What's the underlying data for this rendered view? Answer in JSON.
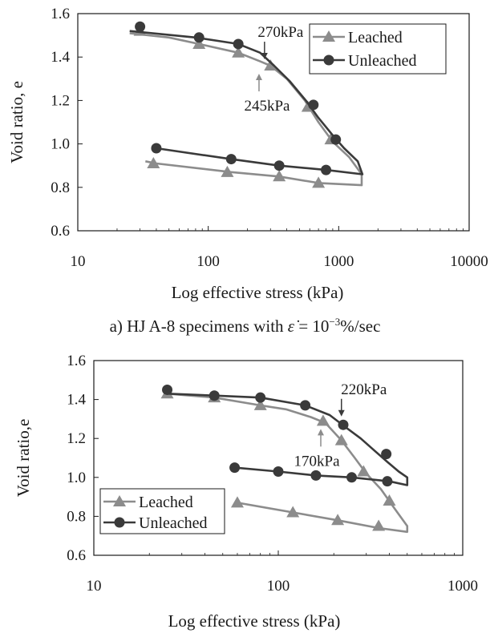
{
  "chart_data": [
    {
      "type": "line",
      "caption": "a) HJ A-8 specimens with ε̇ = 10⁻³%/sec",
      "caption_parts": {
        "prefix": "a) HJ A-8 specimens with ",
        "symbol": "ε̇",
        "eq": " = 10",
        "exp": "−3",
        "suffix": "%/sec"
      },
      "xlabel": "Log effective stress (kPa)",
      "ylabel": "Void ratio, e",
      "xscale": "log",
      "xlim": [
        10,
        10000
      ],
      "ylim": [
        0.6,
        1.6
      ],
      "xticks": [
        10,
        100,
        1000,
        10000
      ],
      "xtick_labels": [
        "10",
        "100",
        "1000",
        "10000"
      ],
      "yticks": [
        0.6,
        0.8,
        1.0,
        1.2,
        1.4,
        1.6
      ],
      "ytick_labels": [
        "0.6",
        "0.8",
        "1.0",
        "1.2",
        "1.4",
        "1.6"
      ],
      "legend_position": "top-right",
      "grid": false,
      "series": [
        {
          "name": "Leached",
          "marker": "triangle",
          "color": "#8c8c8c",
          "curve": [
            [
              25,
              1.51
            ],
            [
              50,
              1.49
            ],
            [
              85,
              1.46
            ],
            [
              170,
              1.42
            ],
            [
              250,
              1.38
            ],
            [
              300,
              1.36
            ],
            [
              400,
              1.3
            ],
            [
              550,
              1.2
            ],
            [
              700,
              1.1
            ],
            [
              900,
              1.01
            ],
            [
              1200,
              0.94
            ],
            [
              1500,
              0.86
            ],
            [
              1500,
              0.81
            ],
            [
              700,
              0.82
            ],
            [
              350,
              0.85
            ],
            [
              150,
              0.87
            ],
            [
              40,
              0.91
            ],
            [
              33,
              0.92
            ]
          ],
          "points": [
            [
              30,
              1.52
            ],
            [
              85,
              1.46
            ],
            [
              170,
              1.42
            ],
            [
              300,
              1.36
            ],
            [
              580,
              1.17
            ],
            [
              870,
              1.02
            ],
            [
              38,
              0.91
            ],
            [
              140,
              0.87
            ],
            [
              350,
              0.85
            ],
            [
              700,
              0.82
            ]
          ]
        },
        {
          "name": "Unleached",
          "marker": "circle",
          "color": "#3a3a3a",
          "curve": [
            [
              25,
              1.52
            ],
            [
              80,
              1.49
            ],
            [
              170,
              1.46
            ],
            [
              250,
              1.42
            ],
            [
              320,
              1.36
            ],
            [
              420,
              1.29
            ],
            [
              560,
              1.2
            ],
            [
              700,
              1.12
            ],
            [
              900,
              1.04
            ],
            [
              1100,
              0.98
            ],
            [
              1400,
              0.92
            ],
            [
              1520,
              0.86
            ],
            [
              800,
              0.88
            ],
            [
              350,
              0.9
            ],
            [
              150,
              0.93
            ],
            [
              40,
              0.98
            ]
          ],
          "points": [
            [
              30,
              1.54
            ],
            [
              85,
              1.49
            ],
            [
              170,
              1.46
            ],
            [
              640,
              1.18
            ],
            [
              950,
              1.02
            ],
            [
              40,
              0.98
            ],
            [
              150,
              0.93
            ],
            [
              350,
              0.9
            ],
            [
              800,
              0.88
            ]
          ]
        }
      ],
      "annotations": [
        {
          "text": "270kPa",
          "x": 270,
          "y": 1.36,
          "color": "#3a3a3a",
          "label_side": "above"
        },
        {
          "text": "245kPa",
          "x": 245,
          "y": 1.36,
          "color": "#8c8c8c",
          "label_side": "below"
        }
      ]
    },
    {
      "type": "line",
      "xlabel": "Log effective stress (kPa)",
      "ylabel": "Void ratio,e",
      "xscale": "log",
      "xlim": [
        10,
        1000
      ],
      "ylim": [
        0.6,
        1.6
      ],
      "xticks": [
        10,
        100,
        1000
      ],
      "xtick_labels": [
        "10",
        "100",
        "1000"
      ],
      "yticks": [
        0.6,
        0.8,
        1.0,
        1.2,
        1.4,
        1.6
      ],
      "ytick_labels": [
        "0.6",
        "0.8",
        "1.0",
        "1.2",
        "1.4",
        "1.6"
      ],
      "legend_position": "bottom-left",
      "grid": false,
      "series": [
        {
          "name": "Leached",
          "marker": "triangle",
          "color": "#8c8c8c",
          "curve": [
            [
              25,
              1.43
            ],
            [
              45,
              1.41
            ],
            [
              80,
              1.37
            ],
            [
              110,
              1.35
            ],
            [
              150,
              1.31
            ],
            [
              180,
              1.28
            ],
            [
              220,
              1.19
            ],
            [
              260,
              1.1
            ],
            [
              300,
              1.02
            ],
            [
              360,
              0.94
            ],
            [
              420,
              0.85
            ],
            [
              500,
              0.75
            ],
            [
              500,
              0.72
            ],
            [
              350,
              0.74
            ],
            [
              210,
              0.78
            ],
            [
              120,
              0.82
            ],
            [
              60,
              0.87
            ]
          ],
          "points": [
            [
              25,
              1.43
            ],
            [
              45,
              1.41
            ],
            [
              80,
              1.37
            ],
            [
              175,
              1.29
            ],
            [
              220,
              1.19
            ],
            [
              290,
              1.03
            ],
            [
              400,
              0.88
            ],
            [
              60,
              0.87
            ],
            [
              120,
              0.82
            ],
            [
              210,
              0.78
            ],
            [
              350,
              0.75
            ]
          ]
        },
        {
          "name": "Unleached",
          "marker": "circle",
          "color": "#3a3a3a",
          "curve": [
            [
              25,
              1.43
            ],
            [
              45,
              1.42
            ],
            [
              80,
              1.41
            ],
            [
              140,
              1.37
            ],
            [
              190,
              1.32
            ],
            [
              230,
              1.26
            ],
            [
              280,
              1.2
            ],
            [
              330,
              1.14
            ],
            [
              390,
              1.08
            ],
            [
              450,
              1.03
            ],
            [
              500,
              1.0
            ],
            [
              500,
              0.96
            ],
            [
              400,
              0.98
            ],
            [
              250,
              1.0
            ],
            [
              160,
              1.01
            ],
            [
              100,
              1.03
            ],
            [
              58,
              1.05
            ]
          ],
          "points": [
            [
              25,
              1.45
            ],
            [
              45,
              1.42
            ],
            [
              80,
              1.41
            ],
            [
              140,
              1.37
            ],
            [
              225,
              1.27
            ],
            [
              385,
              1.12
            ],
            [
              58,
              1.05
            ],
            [
              100,
              1.03
            ],
            [
              160,
              1.01
            ],
            [
              250,
              1.0
            ],
            [
              390,
              0.98
            ]
          ]
        }
      ],
      "annotations": [
        {
          "text": "220kPa",
          "x": 220,
          "y": 1.28,
          "color": "#3a3a3a",
          "label_side": "above"
        },
        {
          "text": "170kPa",
          "x": 170,
          "y": 1.29,
          "color": "#8c8c8c",
          "label_side": "below"
        }
      ]
    }
  ]
}
